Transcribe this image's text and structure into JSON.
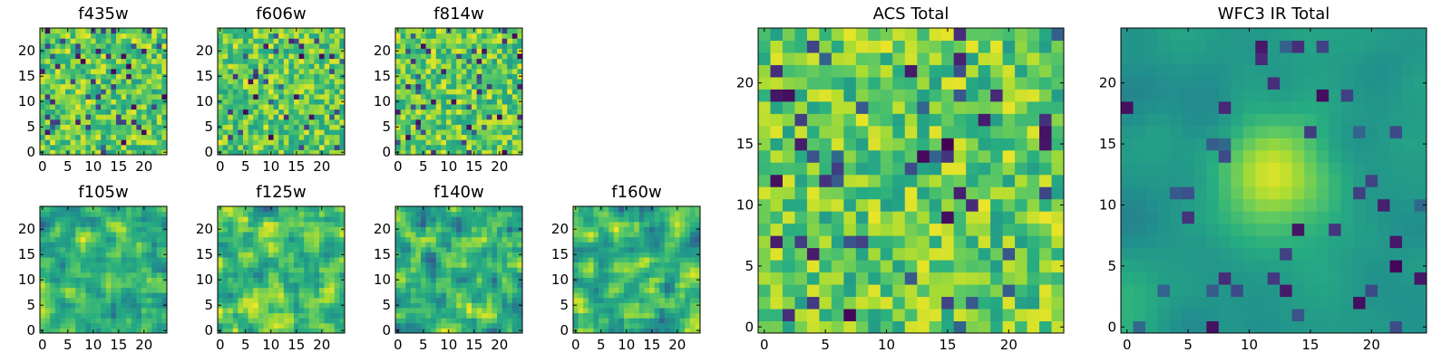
{
  "figure": {
    "colormap": "viridis",
    "colors": {
      "low": "#440154",
      "mid_low": "#3b528b",
      "mid": "#21908d",
      "mid_high": "#5dc963",
      "high": "#fde725",
      "frame": "#000000"
    }
  },
  "chart_data": [
    {
      "type": "heatmap",
      "title": "f435w",
      "grid": [
        25,
        25
      ],
      "xlim": [
        -0.5,
        24.5
      ],
      "ylim": [
        -0.5,
        24.5
      ],
      "xticks": [
        0,
        5,
        10,
        15,
        20
      ],
      "yticks": [
        0,
        5,
        10,
        15,
        20
      ],
      "pattern": "uniform noise, mostly green-yellow with scattered dark pixels"
    },
    {
      "type": "heatmap",
      "title": "f606w",
      "grid": [
        25,
        25
      ],
      "xlim": [
        -0.5,
        24.5
      ],
      "ylim": [
        -0.5,
        24.5
      ],
      "xticks": [
        0,
        5,
        10,
        15,
        20
      ],
      "yticks": [
        0,
        5,
        10,
        15,
        20
      ],
      "pattern": "uniform noise, mostly green-yellow with scattered dark pixels"
    },
    {
      "type": "heatmap",
      "title": "f814w",
      "grid": [
        25,
        25
      ],
      "xlim": [
        -0.5,
        24.5
      ],
      "ylim": [
        -0.5,
        24.5
      ],
      "xticks": [
        0,
        5,
        10,
        15,
        20
      ],
      "yticks": [
        0,
        5,
        10,
        15,
        20
      ],
      "pattern": "uniform noise, mostly green-yellow with scattered dark pixels"
    },
    {
      "type": "heatmap",
      "title": "f105w",
      "grid": [
        25,
        25
      ],
      "xlim": [
        -0.5,
        24.5
      ],
      "ylim": [
        -0.5,
        24.5
      ],
      "xticks": [
        0,
        5,
        10,
        15,
        20
      ],
      "yticks": [
        0,
        5,
        10,
        15,
        20
      ],
      "pattern": "smoothed noise, mostly green-yellow with bluer areas"
    },
    {
      "type": "heatmap",
      "title": "f125w",
      "grid": [
        25,
        25
      ],
      "xlim": [
        -0.5,
        24.5
      ],
      "ylim": [
        -0.5,
        24.5
      ],
      "xticks": [
        0,
        5,
        10,
        15,
        20
      ],
      "yticks": [
        0,
        5,
        10,
        15,
        20
      ],
      "pattern": "smoothed noise, mostly green-yellow with bluer areas"
    },
    {
      "type": "heatmap",
      "title": "f140w",
      "grid": [
        25,
        25
      ],
      "xlim": [
        -0.5,
        24.5
      ],
      "ylim": [
        -0.5,
        24.5
      ],
      "xticks": [
        0,
        5,
        10,
        15,
        20
      ],
      "yticks": [
        0,
        5,
        10,
        15,
        20
      ],
      "pattern": "smoothed noise, mostly green-yellow with bluer areas"
    },
    {
      "type": "heatmap",
      "title": "f160w",
      "grid": [
        25,
        25
      ],
      "xlim": [
        -0.5,
        24.5
      ],
      "ylim": [
        -0.5,
        24.5
      ],
      "xticks": [
        0,
        5,
        10,
        15,
        20
      ],
      "yticks": [
        0,
        5,
        10,
        15,
        20
      ],
      "pattern": "smoothed noise, green-blue with bluer areas"
    },
    {
      "type": "heatmap",
      "title": "ACS Total",
      "grid": [
        25,
        25
      ],
      "xlim": [
        -0.5,
        24.5
      ],
      "ylim": [
        -0.5,
        24.5
      ],
      "xticks": [
        0,
        5,
        10,
        15,
        20
      ],
      "yticks": [
        0,
        5,
        10,
        15,
        20
      ],
      "pattern": "uniform noise, mostly green-yellow with scattered dark pixels"
    },
    {
      "type": "heatmap",
      "title": "WFC3 IR Total",
      "grid": [
        25,
        25
      ],
      "xlim": [
        -0.5,
        24.5
      ],
      "ylim": [
        -0.5,
        24.5
      ],
      "xticks": [
        0,
        5,
        10,
        15,
        20
      ],
      "yticks": [
        0,
        5,
        10,
        15,
        20
      ],
      "pattern": "smooth green field with a bright yellow-green blob near the centre and dark blue spots"
    }
  ]
}
